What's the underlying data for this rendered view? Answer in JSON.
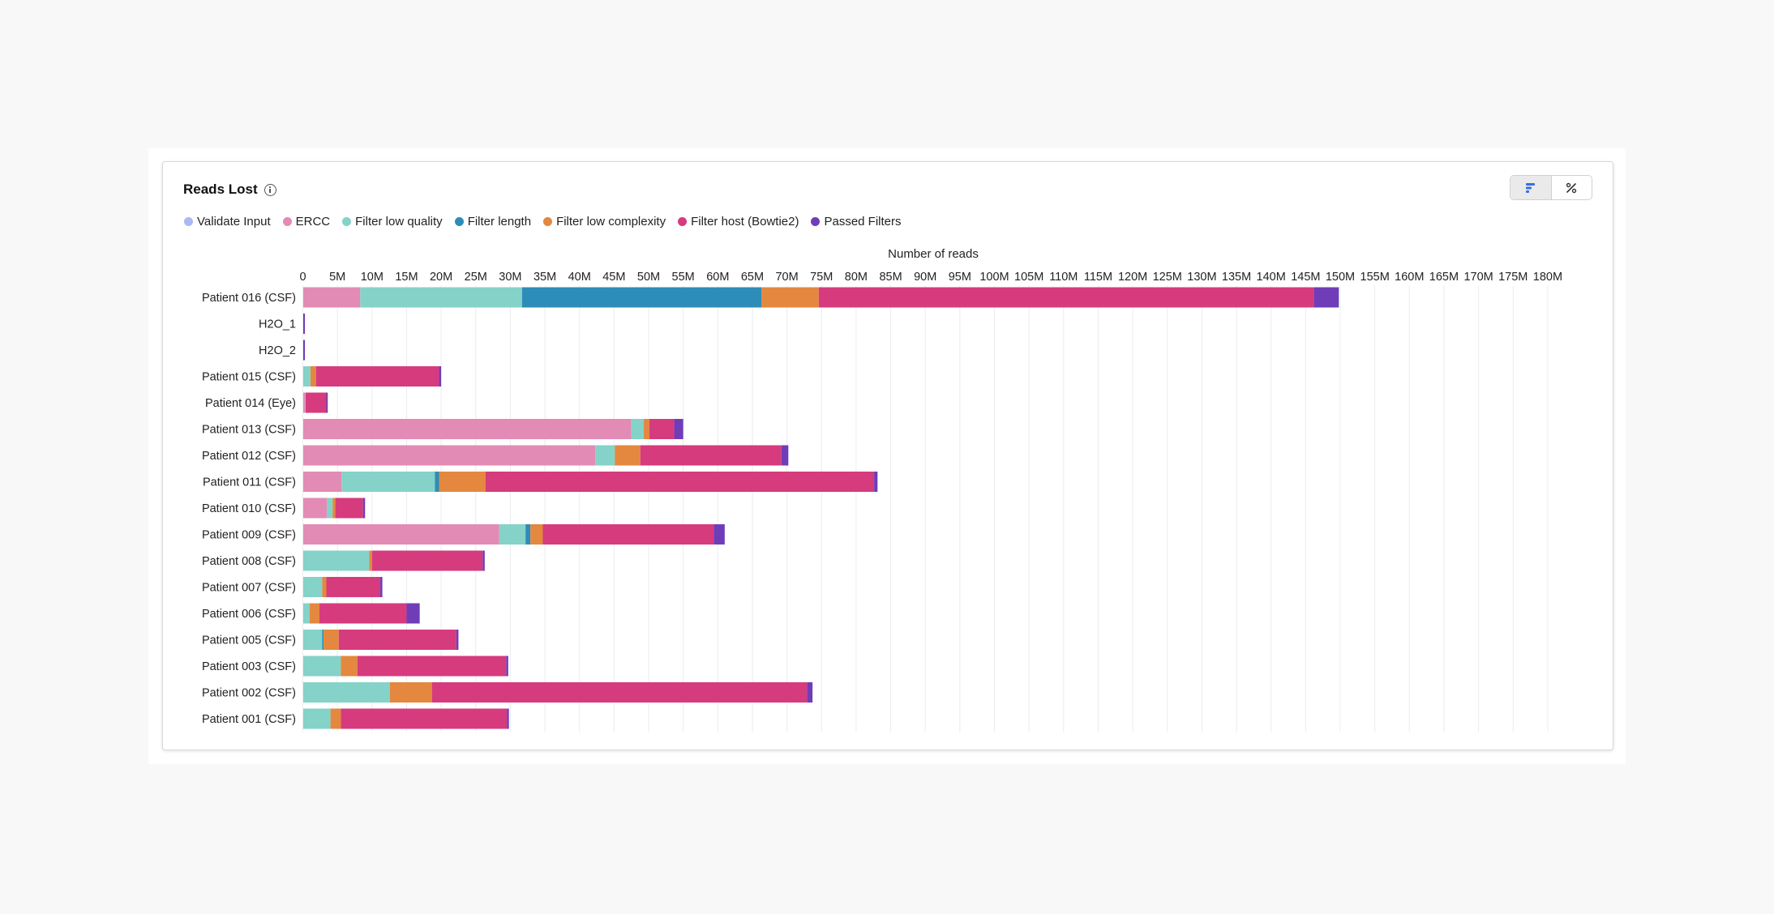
{
  "card": {
    "title": "Reads Lost"
  },
  "toggle": {
    "count_icon": "horizontal-bars-icon",
    "percent_icon": "percent-icon"
  },
  "chart_data": {
    "type": "bar",
    "orientation": "horizontal",
    "stacked": true,
    "xlabel": "Number of reads",
    "xlim": [
      0,
      180000000
    ],
    "x_tick_step": 5000000,
    "x_ticks": [
      "0",
      "5M",
      "10M",
      "15M",
      "20M",
      "25M",
      "30M",
      "35M",
      "40M",
      "45M",
      "50M",
      "55M",
      "60M",
      "65M",
      "70M",
      "75M",
      "80M",
      "85M",
      "90M",
      "95M",
      "100M",
      "105M",
      "110M",
      "115M",
      "120M",
      "125M",
      "130M",
      "135M",
      "140M",
      "145M",
      "150M",
      "155M",
      "160M",
      "165M",
      "170M",
      "175M",
      "180M"
    ],
    "grid": true,
    "legend_position": "top-left",
    "categories": [
      "Patient 016 (CSF)",
      "H2O_1",
      "H2O_2",
      "Patient 015 (CSF)",
      "Patient 014 (Eye)",
      "Patient 013 (CSF)",
      "Patient 012 (CSF)",
      "Patient 011 (CSF)",
      "Patient 010 (CSF)",
      "Patient 009 (CSF)",
      "Patient 008 (CSF)",
      "Patient 007 (CSF)",
      "Patient 006 (CSF)",
      "Patient 005 (CSF)",
      "Patient 003 (CSF)",
      "Patient 002 (CSF)",
      "Patient 001 (CSF)"
    ],
    "series": [
      {
        "name": "Validate Input",
        "color": "#a9b9f2",
        "values": [
          0,
          0,
          0,
          0,
          0,
          0,
          0,
          0,
          0,
          0,
          0,
          0,
          0,
          0,
          0,
          0,
          0
        ]
      },
      {
        "name": "ERCC",
        "color": "#e28bb5",
        "values": [
          8.3,
          0,
          0,
          0,
          0.3,
          47.5,
          42.3,
          5.6,
          3.5,
          28.4,
          0,
          0,
          0,
          0,
          0,
          0,
          0
        ]
      },
      {
        "name": "Filter low quality",
        "color": "#85d2c9",
        "values": [
          23.4,
          0,
          0,
          1.1,
          0.1,
          1.8,
          2.8,
          13.5,
          0.8,
          3.8,
          9.6,
          2.8,
          1.0,
          2.8,
          5.5,
          12.6,
          4.0
        ]
      },
      {
        "name": "Filter length",
        "color": "#2d8db8",
        "values": [
          34.6,
          0,
          0,
          0,
          0,
          0,
          0,
          0.6,
          0,
          0.7,
          0,
          0,
          0,
          0.2,
          0,
          0,
          0
        ]
      },
      {
        "name": "Filter low complexity",
        "color": "#e3883e",
        "values": [
          8.3,
          0,
          0,
          0.8,
          0,
          0.8,
          3.7,
          6.7,
          0.4,
          1.8,
          0.4,
          0.6,
          1.4,
          2.2,
          2.4,
          6.1,
          1.5
        ]
      },
      {
        "name": "Filter host (Bowtie2)",
        "color": "#d63b7e",
        "values": [
          71.6,
          0,
          0,
          17.8,
          3.0,
          3.6,
          20.4,
          56.2,
          4.0,
          24.7,
          16.0,
          7.8,
          12.6,
          17.0,
          21.5,
          54.2,
          24.0
        ]
      },
      {
        "name": "Passed Filters",
        "color": "#6f3db7",
        "values": [
          3.6,
          0.3,
          0.3,
          0.3,
          0.2,
          1.3,
          1.0,
          0.5,
          0.3,
          1.6,
          0.3,
          0.3,
          1.9,
          0.3,
          0.3,
          0.8,
          0.3
        ]
      }
    ],
    "value_unit": "millions of reads"
  }
}
